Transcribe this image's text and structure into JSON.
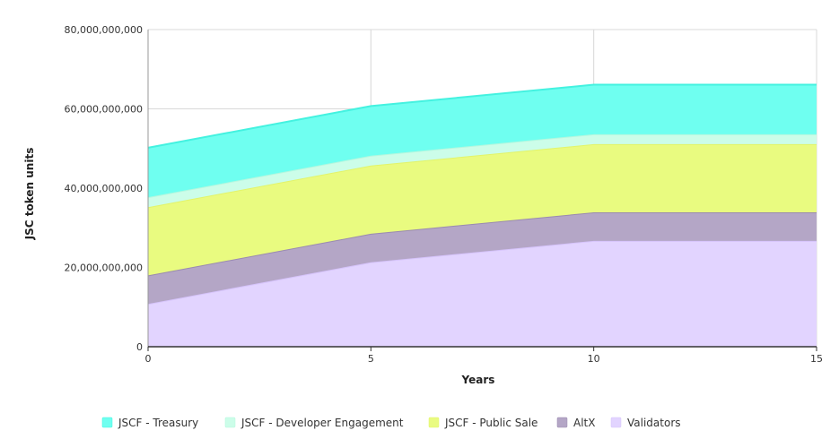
{
  "chart_data": {
    "type": "area",
    "stacked": true,
    "title": "",
    "xlabel": "Years",
    "ylabel": "JSC token units",
    "x": [
      0,
      5,
      10,
      15
    ],
    "xlim": [
      0,
      15
    ],
    "x_ticks": [
      0,
      5,
      10,
      15
    ],
    "x_tick_labels": [
      "0",
      "5",
      "10",
      "15"
    ],
    "ylim": [
      0,
      80000000000
    ],
    "y_ticks": [
      0,
      20000000000,
      40000000000,
      60000000000,
      80000000000
    ],
    "y_tick_labels": [
      "0",
      "20,000,000,000",
      "40,000,000,000",
      "60,000,000,000",
      "80,000,000,000"
    ],
    "grid": true,
    "legend_position": "bottom",
    "series": [
      {
        "name": "Validators",
        "values": [
          10800000000,
          21300000000,
          26700000000,
          26700000000
        ],
        "color": "#e2d4ff",
        "line_color": "#d6c4fb"
      },
      {
        "name": "AltX",
        "values": [
          7200000000,
          7200000000,
          7200000000,
          7200000000
        ],
        "color": "#b4a6c6",
        "line_color": "#9a8ab0"
      },
      {
        "name": "JSCF - Public Sale",
        "values": [
          17200000000,
          17200000000,
          17200000000,
          17200000000
        ],
        "color": "#e9fb80",
        "line_color": "#e2f46a"
      },
      {
        "name": "JSCF - Developer Engagement",
        "values": [
          2500000000,
          2500000000,
          2500000000,
          2500000000
        ],
        "color": "#ccfde9",
        "line_color": "#b5f7de"
      },
      {
        "name": "JSCF - Treasury",
        "values": [
          12500000000,
          12500000000,
          12500000000,
          12500000000
        ],
        "color": "#6ffff0",
        "line_color": "#44f2e0"
      }
    ],
    "legend_order": [
      "JSCF - Treasury",
      "JSCF - Developer Engagement",
      "JSCF - Public Sale",
      "AltX",
      "Validators"
    ]
  }
}
